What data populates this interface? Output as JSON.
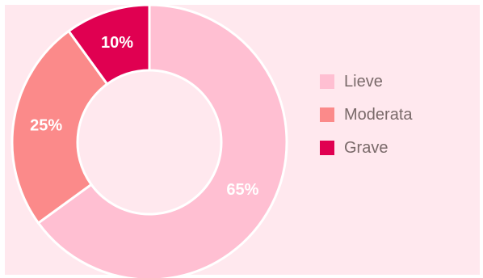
{
  "chart_data": {
    "type": "pie",
    "variant": "donut",
    "categories": [
      "Lieve",
      "Moderata",
      "Grave"
    ],
    "values": [
      65,
      25,
      10
    ],
    "data_labels": [
      "65%",
      "25%",
      "10%"
    ],
    "colors": [
      "#ffbfd2",
      "#fb8a8a",
      "#e00051"
    ],
    "title": "",
    "legend_position": "right"
  },
  "colors": {
    "background": "#ffe8ee",
    "label_text": "#ffffff",
    "legend_text": "#7a6a6a"
  }
}
